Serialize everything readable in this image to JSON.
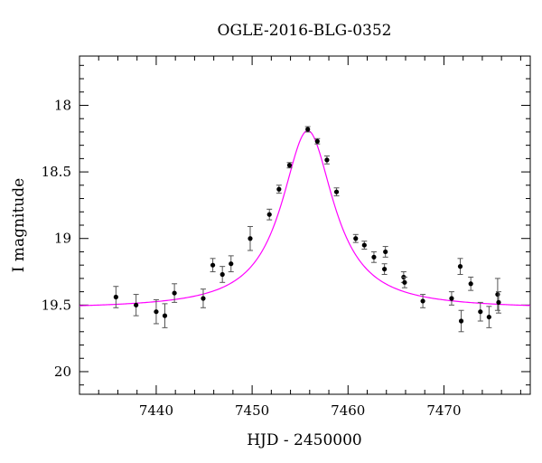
{
  "chart_data": {
    "type": "scatter",
    "title": "OGLE-2016-BLG-0352",
    "xlabel": "HJD - 2450000",
    "ylabel": "I magnitude",
    "xlim": [
      7432,
      7479
    ],
    "ylim": [
      20.17,
      17.63
    ],
    "y_inverted": true,
    "x_ticks": [
      7440,
      7450,
      7460,
      7470
    ],
    "x_tick_labels": [
      "7440",
      "7450",
      "7460",
      "7470"
    ],
    "y_ticks": [
      18,
      18.5,
      19,
      19.5,
      20
    ],
    "y_tick_labels": [
      "18",
      "18.5",
      "19",
      "19.5",
      "20"
    ],
    "grid": false,
    "points_color": "#000000",
    "errorbar_color": "#555555",
    "model_color": "#ff00ff",
    "series": [
      {
        "points": [
          {
            "x": 7435.8,
            "y": 19.44,
            "err": 0.08
          },
          {
            "x": 7437.9,
            "y": 19.5,
            "err": 0.08
          },
          {
            "x": 7440.0,
            "y": 19.55,
            "err": 0.09
          },
          {
            "x": 7440.9,
            "y": 19.58,
            "err": 0.09
          },
          {
            "x": 7441.9,
            "y": 19.41,
            "err": 0.07
          },
          {
            "x": 7444.9,
            "y": 19.45,
            "err": 0.07
          },
          {
            "x": 7445.9,
            "y": 19.2,
            "err": 0.05
          },
          {
            "x": 7446.9,
            "y": 19.27,
            "err": 0.06
          },
          {
            "x": 7447.8,
            "y": 19.19,
            "err": 0.06
          },
          {
            "x": 7449.8,
            "y": 19.0,
            "err": 0.09
          },
          {
            "x": 7451.8,
            "y": 18.82,
            "err": 0.04
          },
          {
            "x": 7452.8,
            "y": 18.63,
            "err": 0.03
          },
          {
            "x": 7453.9,
            "y": 18.45,
            "err": 0.02
          },
          {
            "x": 7455.8,
            "y": 18.18,
            "err": 0.02
          },
          {
            "x": 7456.8,
            "y": 18.27,
            "err": 0.02
          },
          {
            "x": 7457.8,
            "y": 18.41,
            "err": 0.03
          },
          {
            "x": 7458.8,
            "y": 18.65,
            "err": 0.03
          },
          {
            "x": 7460.8,
            "y": 19.0,
            "err": 0.03
          },
          {
            "x": 7461.7,
            "y": 19.05,
            "err": 0.03
          },
          {
            "x": 7462.7,
            "y": 19.14,
            "err": 0.04
          },
          {
            "x": 7463.8,
            "y": 19.23,
            "err": 0.04
          },
          {
            "x": 7463.9,
            "y": 19.1,
            "err": 0.04
          },
          {
            "x": 7465.8,
            "y": 19.29,
            "err": 0.04
          },
          {
            "x": 7465.9,
            "y": 19.33,
            "err": 0.04
          },
          {
            "x": 7467.8,
            "y": 19.47,
            "err": 0.05
          },
          {
            "x": 7470.8,
            "y": 19.45,
            "err": 0.05
          },
          {
            "x": 7471.7,
            "y": 19.21,
            "err": 0.06
          },
          {
            "x": 7471.8,
            "y": 19.62,
            "err": 0.08
          },
          {
            "x": 7472.8,
            "y": 19.34,
            "err": 0.05
          },
          {
            "x": 7473.8,
            "y": 19.55,
            "err": 0.07
          },
          {
            "x": 7474.7,
            "y": 19.59,
            "err": 0.08
          },
          {
            "x": 7475.6,
            "y": 19.42,
            "err": 0.12
          },
          {
            "x": 7475.7,
            "y": 19.48,
            "err": 0.08
          }
        ]
      }
    ],
    "model": {
      "t0": 7455.8,
      "peak_mag": 18.19,
      "baseline_mag": 19.53,
      "width": 3.3
    }
  }
}
